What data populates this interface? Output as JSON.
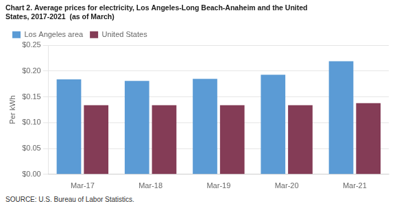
{
  "chart_data": {
    "type": "bar",
    "title": [
      "Chart 2. Average prices for electricity, Los Angeles-Long Beach-Anaheim and the United",
      "States, 2017-2021  (as of March)"
    ],
    "y_label": "Per kWh",
    "source": "SOURCE: U.S. Bureau of Labor Statistics.",
    "categories": [
      "Mar-17",
      "Mar-18",
      "Mar-19",
      "Mar-20",
      "Mar-21"
    ],
    "series": [
      {
        "name": "Los Angeles area",
        "color": "#5B9BD5",
        "values": [
          0.184,
          0.181,
          0.185,
          0.193,
          0.219
        ]
      },
      {
        "name": "United States",
        "color": "#843C56",
        "values": [
          0.134,
          0.134,
          0.134,
          0.134,
          0.138
        ]
      }
    ],
    "ylim": [
      0,
      0.25
    ],
    "yticks": [
      {
        "value": 0.0,
        "label": "$0.00"
      },
      {
        "value": 0.05,
        "label": "$0.05"
      },
      {
        "value": 0.1,
        "label": "$0.10"
      },
      {
        "value": 0.15,
        "label": "$0.15"
      },
      {
        "value": 0.2,
        "label": "$0.20"
      },
      {
        "value": 0.25,
        "label": "$0.25"
      }
    ],
    "grid": true,
    "legend": "upper left"
  }
}
